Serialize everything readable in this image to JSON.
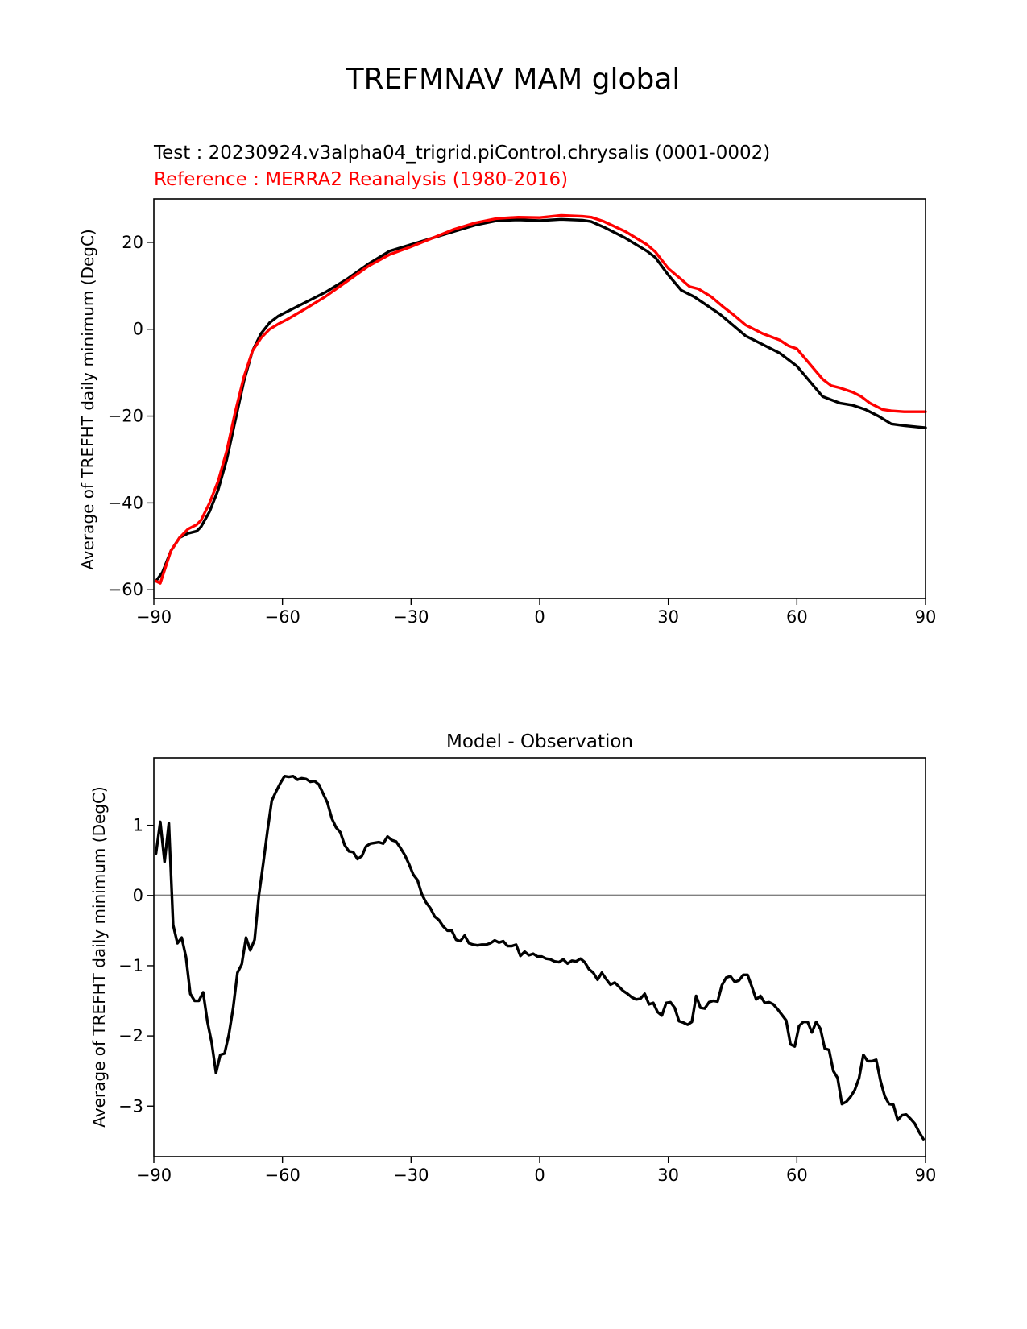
{
  "title": "TREFMNAV MAM global",
  "chart_data": [
    {
      "type": "line",
      "test_label": "Test : 20230924.v3alpha04_trigrid.piControl.chrysalis (0001-0002)",
      "reference_label": "Reference : MERRA2 Reanalysis (1980-2016)",
      "xlabel": "",
      "ylabel": "Average of TREFHT daily minimum (DegC)",
      "xlim": [
        -90,
        90
      ],
      "ylim": [
        -62,
        30
      ],
      "xticks": [
        -90,
        -60,
        -30,
        0,
        30,
        60,
        90
      ],
      "xtick_labels": [
        "−90",
        "−60",
        "−30",
        "0",
        "30",
        "60",
        "90"
      ],
      "yticks": [
        20,
        0,
        -20,
        -40,
        -60
      ],
      "ytick_labels": [
        "20",
        "0",
        "−20",
        "−40",
        "−60"
      ],
      "grid": false,
      "series": [
        {
          "color": "#000000",
          "x": [
            -89.5,
            -88,
            -86,
            -84,
            -82,
            -80,
            -79,
            -77,
            -75,
            -73,
            -71,
            -69,
            -67,
            -65,
            -63,
            -61,
            -59,
            -55,
            -50,
            -45,
            -40,
            -35,
            -30,
            -25,
            -20,
            -15,
            -10,
            -5,
            0,
            5,
            10,
            12,
            15,
            20,
            25,
            27,
            30,
            33,
            36,
            39,
            42,
            45,
            48,
            52,
            56,
            60,
            63,
            66,
            70,
            73,
            76,
            79,
            82,
            85,
            88,
            90
          ],
          "y": [
            -58,
            -56,
            -51,
            -48,
            -47,
            -46.5,
            -45.5,
            -42,
            -37,
            -30,
            -21,
            -12,
            -5,
            -1,
            1.5,
            3,
            4,
            6,
            8.5,
            11.5,
            15,
            18,
            19.5,
            21,
            22.5,
            24,
            25,
            25.2,
            25,
            25.3,
            25.1,
            24.8,
            23.5,
            21,
            18,
            16.5,
            12.5,
            9,
            7.5,
            5.5,
            3.5,
            1,
            -1.5,
            -3.5,
            -5.5,
            -8.5,
            -12,
            -15.5,
            -17,
            -17.5,
            -18.5,
            -20,
            -21.8,
            -22.2,
            -22.5,
            -22.7
          ]
        },
        {
          "color": "#ff0000",
          "x": [
            -89.5,
            -88.5,
            -87,
            -86,
            -84,
            -82,
            -80,
            -79,
            -77,
            -75,
            -73,
            -71,
            -69,
            -67,
            -65,
            -63,
            -61,
            -59,
            -55,
            -50,
            -45,
            -40,
            -35,
            -30,
            -25,
            -20,
            -15,
            -10,
            -5,
            0,
            5,
            10,
            12,
            15,
            20,
            25,
            27,
            30,
            33,
            35,
            37,
            40,
            43,
            45,
            48,
            52,
            56,
            58,
            60,
            63,
            66,
            68,
            70,
            73,
            75,
            77,
            80,
            82,
            85,
            88,
            90
          ],
          "y": [
            -58,
            -58.5,
            -54,
            -51,
            -48,
            -46,
            -45,
            -44,
            -40,
            -35,
            -28,
            -19,
            -11,
            -5,
            -2,
            0,
            1.2,
            2.2,
            4.5,
            7.5,
            11,
            14.5,
            17.2,
            19,
            21,
            23,
            24.5,
            25.5,
            25.8,
            25.7,
            26.2,
            26,
            25.8,
            24.8,
            22.5,
            19.5,
            17.8,
            14,
            11.5,
            9.8,
            9.3,
            7.5,
            5,
            3.5,
            1,
            -1,
            -2.5,
            -3.8,
            -4.5,
            -8,
            -11.5,
            -13,
            -13.5,
            -14.5,
            -15.5,
            -17,
            -18.5,
            -18.8,
            -19,
            -19,
            -19
          ]
        }
      ]
    },
    {
      "type": "line",
      "title": "Model - Observation",
      "xlabel": "",
      "ylabel": "Average of TREFHT daily minimum (DegC)",
      "xlim": [
        -90,
        90
      ],
      "ylim": [
        -3.72,
        1.96
      ],
      "xticks": [
        -90,
        -60,
        -30,
        0,
        30,
        60,
        90
      ],
      "xtick_labels": [
        "−90",
        "−60",
        "−30",
        "0",
        "30",
        "60",
        "90"
      ],
      "yticks": [
        1,
        0,
        -1,
        -2,
        -3
      ],
      "ytick_labels": [
        "1",
        "0",
        "−1",
        "−2",
        "−3"
      ],
      "grid": false,
      "zero_line": {
        "y": 0,
        "color": "#808080"
      },
      "series": [
        {
          "color": "#000000",
          "x": [
            -89.5,
            -88.5,
            -87.5,
            -86.5,
            -85.5,
            -84.5,
            -83.5,
            -82.5,
            -81.5,
            -80.5,
            -79.5,
            -78.5,
            -77.5,
            -76.5,
            -75.5,
            -74.5,
            -73.5,
            -72.5,
            -71.5,
            -70.5,
            -69.5,
            -68.5,
            -67.5,
            -66.5,
            -65.5,
            -64.5,
            -63.5,
            -62.5,
            -61.5,
            -60.5,
            -59.5,
            -58.5,
            -57.5,
            -56.5,
            -55.5,
            -54.5,
            -53.5,
            -52.5,
            -51.5,
            -50.5,
            -49.5,
            -48.5,
            -47.5,
            -46.5,
            -45.5,
            -44.5,
            -43.5,
            -42.5,
            -41.5,
            -40.5,
            -39.5,
            -38.5,
            -37.5,
            -36.5,
            -35.5,
            -34.5,
            -33.5,
            -32.5,
            -31.5,
            -30.5,
            -29.5,
            -28.5,
            -27.5,
            -26.5,
            -25.5,
            -24.5,
            -23.5,
            -22.5,
            -21.5,
            -20.5,
            -19.5,
            -18.5,
            -17.5,
            -16.5,
            -15.5,
            -14.5,
            -13.5,
            -12.5,
            -11.5,
            -10.5,
            -9.5,
            -8.5,
            -7.5,
            -6.5,
            -5.5,
            -4.5,
            -3.5,
            -2.5,
            -1.5,
            -0.5,
            0.5,
            1.5,
            2.5,
            3.5,
            4.5,
            5.5,
            6.5,
            7.5,
            8.5,
            9.5,
            10.5,
            11.5,
            12.5,
            13.5,
            14.5,
            15.5,
            16.5,
            17.5,
            18.5,
            19.5,
            20.5,
            21.5,
            22.5,
            23.5,
            24.5,
            25.5,
            26.5,
            27.5,
            28.5,
            29.5,
            30.5,
            31.5,
            32.5,
            33.5,
            34.5,
            35.5,
            36.5,
            37.5,
            38.5,
            39.5,
            40.5,
            41.5,
            42.5,
            43.5,
            44.5,
            45.5,
            46.5,
            47.5,
            48.5,
            49.5,
            50.5,
            51.5,
            52.5,
            53.5,
            54.5,
            55.5,
            56.5,
            57.5,
            58.5,
            59.5,
            60.5,
            61.5,
            62.5,
            63.5,
            64.5,
            65.5,
            66.5,
            67.5,
            68.5,
            69.5,
            70.5,
            71.5,
            72.5,
            73.5,
            74.5,
            75.5,
            76.5,
            77.5,
            78.5,
            79.5,
            80.5,
            81.5,
            82.5,
            83.5,
            84.5,
            85.5,
            86.5,
            87.5,
            88.5,
            89.5
          ],
          "y": [
            0.6,
            1.05,
            0.48,
            1.03,
            -0.42,
            -0.68,
            -0.6,
            -0.88,
            -1.4,
            -1.5,
            -1.5,
            -1.38,
            -1.8,
            -2.1,
            -2.53,
            -2.27,
            -2.25,
            -1.98,
            -1.6,
            -1.1,
            -0.98,
            -0.6,
            -0.78,
            -0.63,
            0,
            0.45,
            0.92,
            1.35,
            1.48,
            1.6,
            1.7,
            1.69,
            1.7,
            1.65,
            1.67,
            1.66,
            1.62,
            1.63,
            1.58,
            1.45,
            1.32,
            1.1,
            0.97,
            0.9,
            0.72,
            0.63,
            0.62,
            0.52,
            0.56,
            0.7,
            0.74,
            0.75,
            0.76,
            0.74,
            0.84,
            0.79,
            0.77,
            0.68,
            0.58,
            0.45,
            0.3,
            0.22,
            0.02,
            -0.1,
            -0.18,
            -0.3,
            -0.35,
            -0.44,
            -0.5,
            -0.5,
            -0.63,
            -0.65,
            -0.57,
            -0.68,
            -0.7,
            -0.71,
            -0.7,
            -0.7,
            -0.68,
            -0.64,
            -0.67,
            -0.65,
            -0.72,
            -0.72,
            -0.7,
            -0.86,
            -0.8,
            -0.85,
            -0.83,
            -0.87,
            -0.87,
            -0.9,
            -0.91,
            -0.94,
            -0.95,
            -0.91,
            -0.97,
            -0.93,
            -0.94,
            -0.9,
            -0.95,
            -1.05,
            -1.1,
            -1.2,
            -1.1,
            -1.19,
            -1.27,
            -1.24,
            -1.3,
            -1.36,
            -1.4,
            -1.45,
            -1.48,
            -1.47,
            -1.4,
            -1.55,
            -1.53,
            -1.66,
            -1.71,
            -1.53,
            -1.52,
            -1.6,
            -1.79,
            -1.81,
            -1.84,
            -1.8,
            -1.43,
            -1.6,
            -1.61,
            -1.52,
            -1.5,
            -1.51,
            -1.28,
            -1.17,
            -1.15,
            -1.23,
            -1.21,
            -1.13,
            -1.13,
            -1.3,
            -1.48,
            -1.43,
            -1.53,
            -1.52,
            -1.55,
            -1.62,
            -1.7,
            -1.78,
            -2.12,
            -2.15,
            -1.86,
            -1.8,
            -1.8,
            -1.95,
            -1.8,
            -1.9,
            -2.18,
            -2.2,
            -2.5,
            -2.6,
            -2.97,
            -2.94,
            -2.87,
            -2.77,
            -2.6,
            -2.27,
            -2.36,
            -2.36,
            -2.34,
            -2.64,
            -2.86,
            -2.97,
            -2.98,
            -3.2,
            -3.13,
            -3.12,
            -3.18,
            -3.25,
            -3.37,
            -3.47
          ]
        }
      ]
    }
  ]
}
